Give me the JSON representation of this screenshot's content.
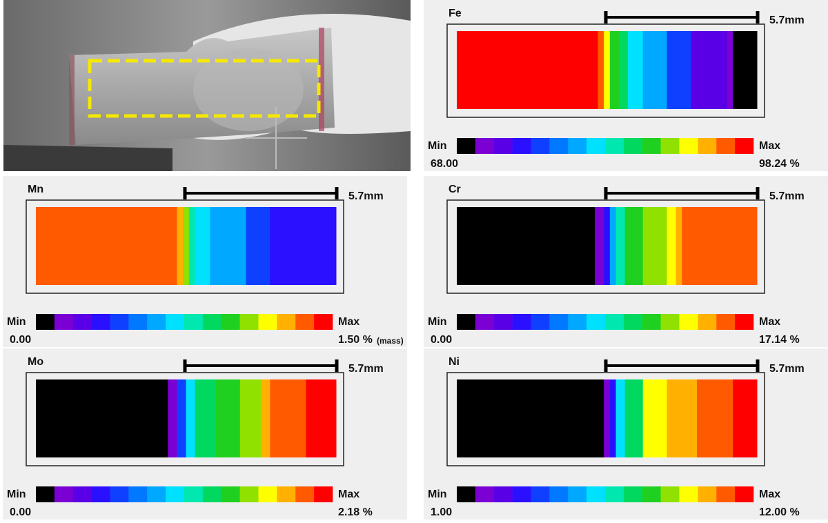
{
  "colorbar": [
    "#000000",
    "#7a00d4",
    "#5a00e6",
    "#2a10ff",
    "#1040ff",
    "#0078ff",
    "#00a8ff",
    "#00e0ff",
    "#00e8b0",
    "#00d860",
    "#20d020",
    "#90e000",
    "#ffff00",
    "#ffb000",
    "#ff5a00",
    "#ff0000"
  ],
  "panels": [
    {
      "element": "Fe",
      "scale": "5.7mm",
      "min_label": "Min",
      "max_label": "Max",
      "min": "68.00",
      "max": "98.24 %"
    },
    {
      "element": "Mn",
      "scale": "5.7mm",
      "min_label": "Min",
      "max_label": "Max",
      "min": "0.00",
      "max": "1.50 %",
      "note": "(mass)"
    },
    {
      "element": "Cr",
      "scale": "5.7mm",
      "min_label": "Min",
      "max_label": "Max",
      "min": "0.00",
      "max": "17.14 %"
    },
    {
      "element": "Mo",
      "scale": "5.7mm",
      "min_label": "Min",
      "max_label": "Max",
      "min": "0.00",
      "max": "2.18 %"
    },
    {
      "element": "Ni",
      "scale": "5.7mm",
      "min_label": "Min",
      "max_label": "Max",
      "min": "1.00",
      "max": "12.00 %"
    }
  ]
}
